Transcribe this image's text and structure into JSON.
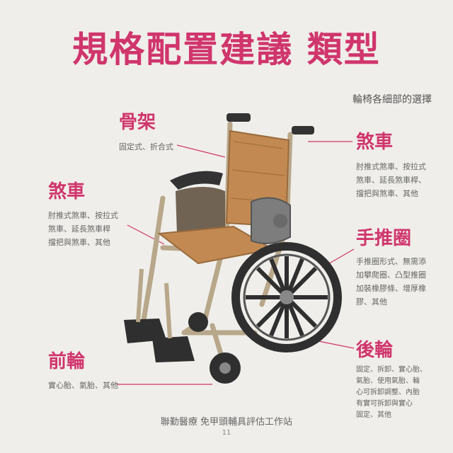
{
  "title": "規格配置建議 類型",
  "subtitle": "輪椅各細部的選擇",
  "callouts": {
    "frame": {
      "label": "骨架",
      "desc": [
        "固定式、折合式"
      ]
    },
    "brake_left": {
      "label": "煞車",
      "desc": [
        "肘推式煞車、按拉式",
        "煞車、延長煞車桿",
        "擋把與煞車、其他"
      ]
    },
    "brake_right": {
      "label": "煞車",
      "desc": [
        "肘推式煞車、按拉式",
        "煞車、延長煞車桿、",
        "擋把與煞車、其他"
      ]
    },
    "handrim": {
      "label": "手推圈",
      "desc": [
        "手推圈形式、無需添",
        "加攀爬圈、凸型推圈",
        "加裝橡膠條、增厚橡",
        "膠、其他"
      ]
    },
    "rear_wheel": {
      "label": "後輪",
      "desc": [
        "固定、拆卸、實心胎、",
        "氣胎、使用氣胎、輪",
        "心可拆卸調整、內胎",
        "有實可拆卸與實心",
        "固定、其他"
      ]
    },
    "front_wheel": {
      "label": "前輪",
      "desc": [
        "實心胎、氣胎、其他"
      ]
    }
  },
  "footer": "聯勤醫療 免甲頭輔具評估工作站",
  "page_number": "11",
  "colors": {
    "accent": "#d0356c",
    "background": "#efeeea"
  }
}
